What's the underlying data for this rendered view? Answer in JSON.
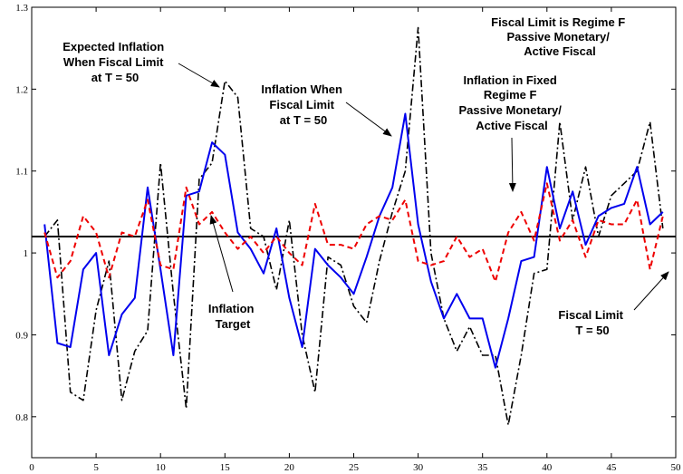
{
  "chart_data": {
    "type": "line",
    "title": "",
    "xlabel": "",
    "ylabel": "",
    "xlim": [
      0,
      50
    ],
    "ylim": [
      0.75,
      1.3
    ],
    "xticks": [
      0,
      5,
      10,
      15,
      20,
      25,
      30,
      35,
      40,
      45,
      50
    ],
    "xtick_labels": [
      "0",
      "5",
      "10",
      "15",
      "20",
      "25",
      "30",
      "35",
      "40",
      "45",
      "50"
    ],
    "yticks": [
      0.8,
      0.9,
      1.0,
      1.1,
      1.2,
      1.3
    ],
    "ytick_labels": [
      "0.8",
      "0.9",
      "1",
      "1.1",
      "1.2",
      "1.3"
    ],
    "grid": false,
    "x": [
      1,
      2,
      3,
      4,
      5,
      6,
      7,
      8,
      9,
      10,
      11,
      12,
      13,
      14,
      15,
      16,
      17,
      18,
      19,
      20,
      21,
      22,
      23,
      24,
      25,
      26,
      27,
      28,
      29,
      30,
      31,
      32,
      33,
      34,
      35,
      36,
      37,
      38,
      39,
      40,
      41,
      42,
      43,
      44,
      45,
      46,
      47,
      48,
      49
    ],
    "series": [
      {
        "key": "expected",
        "color": "#000000",
        "style": "dashdot",
        "values": [
          1.02,
          1.04,
          0.83,
          0.82,
          0.93,
          0.99,
          0.82,
          0.88,
          0.905,
          1.11,
          0.95,
          0.81,
          1.09,
          1.11,
          1.21,
          1.19,
          1.03,
          1.02,
          0.955,
          1.04,
          0.9,
          0.83,
          0.995,
          0.985,
          0.935,
          0.915,
          0.99,
          1.05,
          1.1,
          1.275,
          1.0,
          0.92,
          0.88,
          0.91,
          0.875,
          0.875,
          0.79,
          0.875,
          0.975,
          0.98,
          1.16,
          1.04,
          1.105,
          1.02,
          1.07,
          1.085,
          1.1,
          1.16,
          1.03
        ]
      },
      {
        "key": "fiscal_limit",
        "color": "#0000ee",
        "style": "solid",
        "values": [
          1.035,
          0.89,
          0.885,
          0.98,
          1.0,
          0.875,
          0.925,
          0.945,
          1.08,
          0.98,
          0.875,
          1.07,
          1.075,
          1.135,
          1.12,
          1.025,
          1.005,
          0.975,
          1.03,
          0.945,
          0.885,
          1.005,
          0.985,
          0.97,
          0.95,
          0.995,
          1.045,
          1.08,
          1.17,
          1.035,
          0.965,
          0.92,
          0.95,
          0.92,
          0.92,
          0.86,
          0.92,
          0.99,
          0.995,
          1.105,
          1.03,
          1.075,
          1.01,
          1.045,
          1.055,
          1.06,
          1.105,
          1.035,
          1.05
        ]
      },
      {
        "key": "fixed_regime_f",
        "color": "#ee0000",
        "style": "dashed",
        "values": [
          1.025,
          0.97,
          0.99,
          1.045,
          1.025,
          0.97,
          1.025,
          1.02,
          1.065,
          0.985,
          0.98,
          1.08,
          1.035,
          1.05,
          1.025,
          1.005,
          1.02,
          1.0,
          1.02,
          1.0,
          0.985,
          1.06,
          1.01,
          1.01,
          1.005,
          1.035,
          1.045,
          1.04,
          1.065,
          0.99,
          0.985,
          0.99,
          1.02,
          0.995,
          1.005,
          0.965,
          1.025,
          1.05,
          1.015,
          1.085,
          1.015,
          1.04,
          0.995,
          1.04,
          1.035,
          1.035,
          1.065,
          0.98,
          1.045
        ]
      }
    ],
    "reference_line": {
      "y": 1.02,
      "color": "#000000"
    },
    "annotations": [
      {
        "key": "expected",
        "lines": [
          "Expected Inflation",
          "When Fiscal Limit",
          "at T = 50"
        ]
      },
      {
        "key": "fiscal_limit",
        "lines": [
          "Inflation When",
          "Fiscal Limit",
          "at T = 50"
        ]
      },
      {
        "key": "fixed_regime_f",
        "lines": [
          "Inflation in Fixed",
          "Regime F",
          "Passive Monetary/",
          "Active Fiscal"
        ]
      },
      {
        "key": "regime_note",
        "lines": [
          "Fiscal Limit is Regime F",
          "Passive Monetary/",
          "Active Fiscal"
        ]
      },
      {
        "key": "target",
        "lines": [
          "Inflation",
          "Target"
        ]
      },
      {
        "key": "t50",
        "lines": [
          "Fiscal Limit",
          "T = 50"
        ]
      }
    ]
  }
}
